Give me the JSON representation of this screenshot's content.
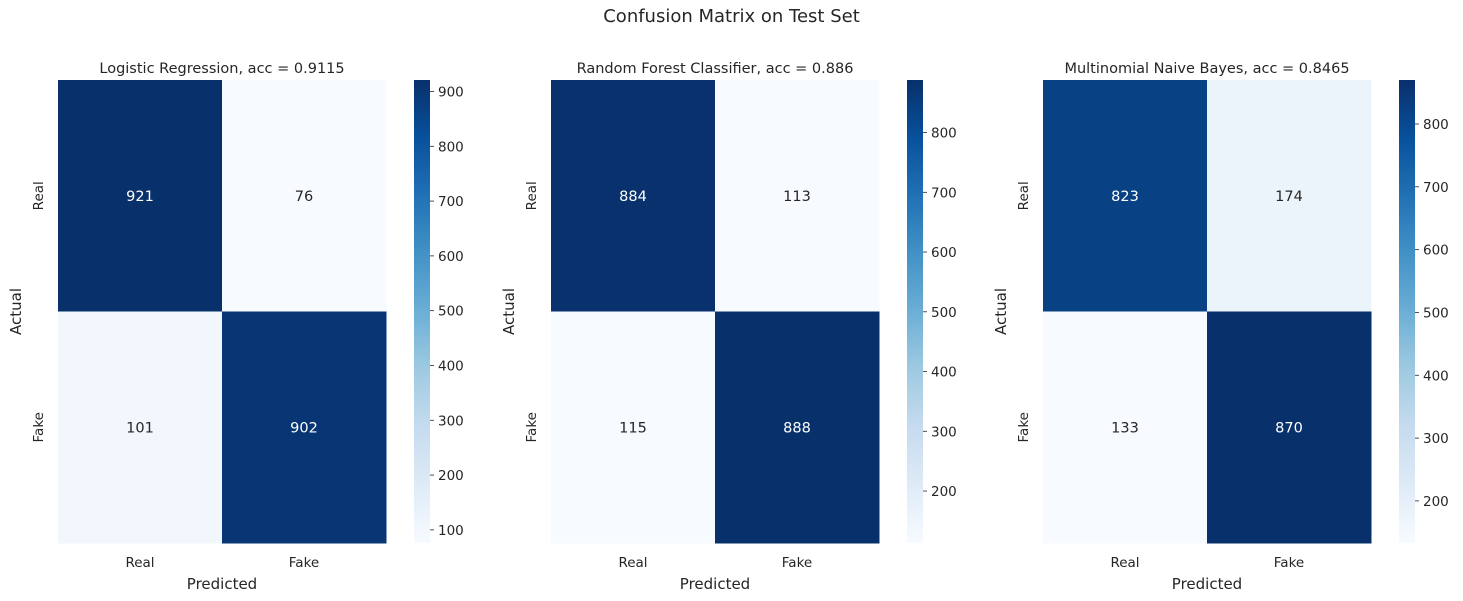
{
  "figure": {
    "title": "Confusion Matrix on Test Set"
  },
  "chart_data": [
    {
      "type": "heatmap",
      "title": "Logistic Regression, acc = 0.9115",
      "xlabel": "Predicted",
      "ylabel": "Actual",
      "x_categories": [
        "Real",
        "Fake"
      ],
      "y_categories": [
        "Real",
        "Fake"
      ],
      "values": [
        [
          921,
          76
        ],
        [
          101,
          902
        ]
      ],
      "colormap": "Blues",
      "vmin": 76,
      "vmax": 921,
      "colorbar_ticks": [
        100,
        200,
        300,
        400,
        500,
        600,
        700,
        800,
        900
      ]
    },
    {
      "type": "heatmap",
      "title": "Random Forest Classifier, acc = 0.886",
      "xlabel": "Predicted",
      "ylabel": "Actual",
      "x_categories": [
        "Real",
        "Fake"
      ],
      "y_categories": [
        "Real",
        "Fake"
      ],
      "values": [
        [
          884,
          113
        ],
        [
          115,
          888
        ]
      ],
      "colormap": "Blues",
      "vmin": 113,
      "vmax": 888,
      "colorbar_ticks": [
        200,
        300,
        400,
        500,
        600,
        700,
        800
      ]
    },
    {
      "type": "heatmap",
      "title": "Multinomial Naive Bayes, acc = 0.8465",
      "xlabel": "Predicted",
      "ylabel": "Actual",
      "x_categories": [
        "Real",
        "Fake"
      ],
      "y_categories": [
        "Real",
        "Fake"
      ],
      "values": [
        [
          823,
          174
        ],
        [
          133,
          870
        ]
      ],
      "colormap": "Blues",
      "vmin": 133,
      "vmax": 870,
      "colorbar_ticks": [
        200,
        300,
        400,
        500,
        600,
        700,
        800
      ]
    }
  ]
}
